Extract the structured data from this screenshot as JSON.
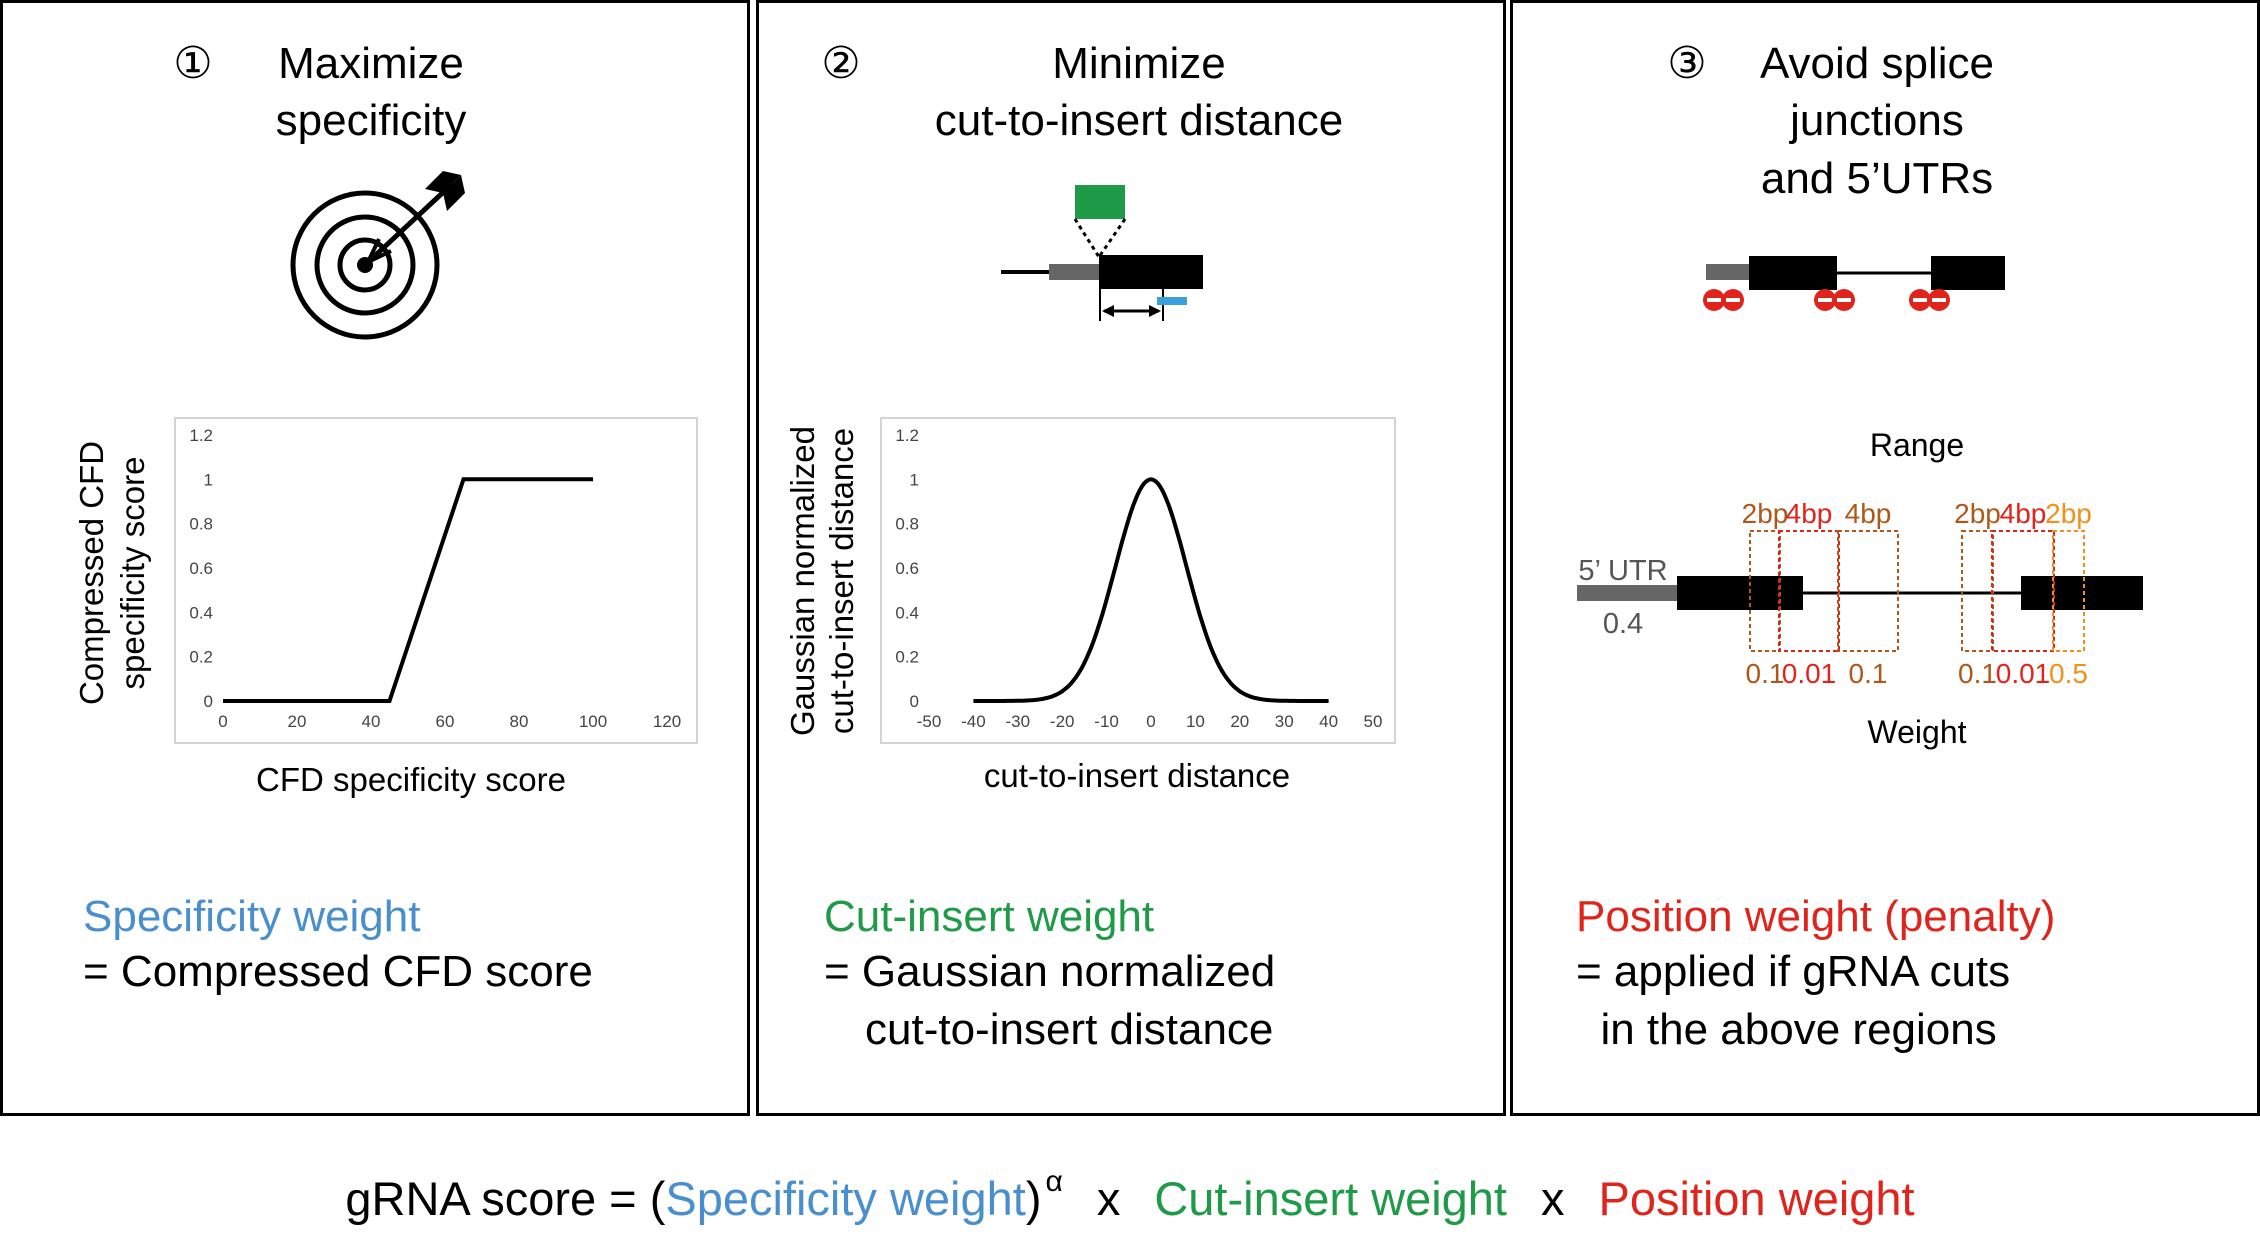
{
  "panels": [
    {
      "number": "①",
      "title_lines": [
        "Maximize",
        "specificity"
      ],
      "icon": "target-with-arrow",
      "chart_data": {
        "type": "line",
        "x": [
          0,
          45,
          65,
          100
        ],
        "y": [
          0,
          0,
          1,
          1
        ],
        "xlim": [
          0,
          120
        ],
        "ylim": [
          0,
          1.2
        ],
        "x_ticks": [
          "0",
          "20",
          "40",
          "60",
          "80",
          "100",
          "120"
        ],
        "y_ticks": [
          "0",
          "0.2",
          "0.4",
          "0.6",
          "0.8",
          "1",
          "1.2"
        ],
        "xlabel": "CFD specificity score",
        "ylabel_lines": [
          "Compressed CFD",
          "specificity  score"
        ],
        "grid": false
      },
      "weight_name": "Specificity weight",
      "weight_color": "#4a8fcd",
      "desc_lines": [
        "= Compressed CFD score"
      ]
    },
    {
      "number": "②",
      "title_lines": [
        "Minimize",
        "cut-to-insert distance"
      ],
      "icon": "insert-site-diagram",
      "chart_data": {
        "type": "line",
        "curve": "gaussian",
        "mean": 0,
        "sigma": 8,
        "x_range": [
          -40,
          40
        ],
        "xlim": [
          -50,
          50
        ],
        "ylim": [
          0,
          1.2
        ],
        "x_ticks": [
          "-50",
          "-40",
          "-30",
          "-20",
          "-10",
          "0",
          "10",
          "20",
          "30",
          "40",
          "50"
        ],
        "y_ticks": [
          "0",
          "0.2",
          "0.4",
          "0.6",
          "0.8",
          "1",
          "1.2"
        ],
        "xlabel": "cut-to-insert distance",
        "ylabel_lines": [
          "Gaussian normalized",
          "cut-to-insert distance"
        ],
        "grid": false
      },
      "weight_name": "Cut-insert weight",
      "weight_color": "#1e9a48",
      "desc_lines": [
        "= Gaussian normalized",
        "cut-to-insert distance"
      ]
    },
    {
      "number": "③",
      "title_lines": [
        "Avoid splice",
        "junctions",
        "and 5’UTRs"
      ],
      "icon": "exon-intron-penalty-diagram",
      "range_label": "Range",
      "weight_label": "Weight",
      "utr_label": "5’ UTR",
      "utr_weight": "0.4",
      "window_labels": [
        "2bp",
        "4bp",
        "4bp",
        "2bp",
        "4bp",
        "2bp"
      ],
      "window_colors": [
        "#b0581a",
        "#e0241c",
        "#b0581a",
        "#b0581a",
        "#e0241c",
        "#f0911e"
      ],
      "window_weights": [
        "0.1",
        "0.01",
        "0.1",
        "0.1",
        "0.01",
        "0.5"
      ],
      "weight_name": "Position weight (penalty)",
      "weight_color": "#e0241c",
      "desc_lines": [
        "= applied if gRNA cuts",
        "  in the above regions"
      ]
    }
  ],
  "formula": {
    "prefix": "gRNA score = (",
    "term1": "Specificity weight",
    "close": ")",
    "exponent": "α",
    "times1": "x",
    "term2": "Cut-insert weight",
    "times2": "x",
    "term3": "Position weight",
    "color1": "#4a8fcd",
    "color2": "#1e9a48",
    "color3": "#e0241c"
  }
}
